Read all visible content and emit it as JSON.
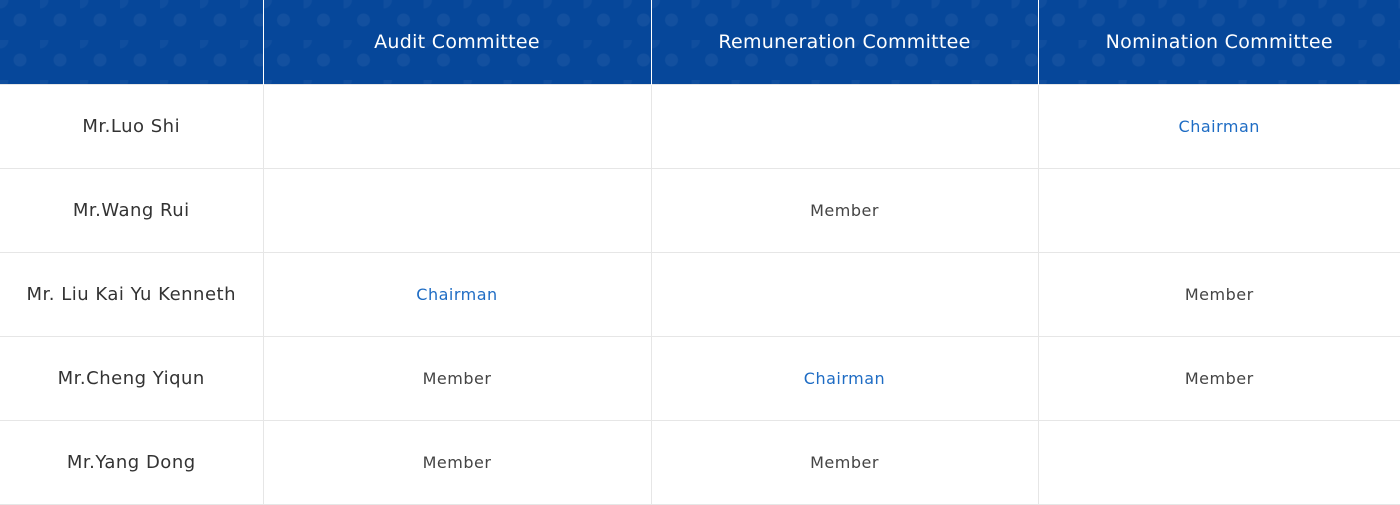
{
  "colors": {
    "header_bg": "#06479a",
    "chairman": "#1e6cc4",
    "member": "#444444"
  },
  "headers": [
    "",
    "Audit Committee",
    "Remuneration Committee",
    "Nomination Committee"
  ],
  "rows": [
    {
      "name": "Mr.Luo Shi",
      "cells": [
        "",
        "",
        "Chairman"
      ]
    },
    {
      "name": "Mr.Wang Rui",
      "cells": [
        "",
        "Member",
        ""
      ]
    },
    {
      "name": "Mr. Liu Kai Yu Kenneth",
      "cells": [
        "Chairman",
        "",
        "Member"
      ]
    },
    {
      "name": "Mr.Cheng Yiqun",
      "cells": [
        "Member",
        "Chairman",
        "Member"
      ]
    },
    {
      "name": "Mr.Yang Dong",
      "cells": [
        "Member",
        "Member",
        ""
      ]
    }
  ]
}
